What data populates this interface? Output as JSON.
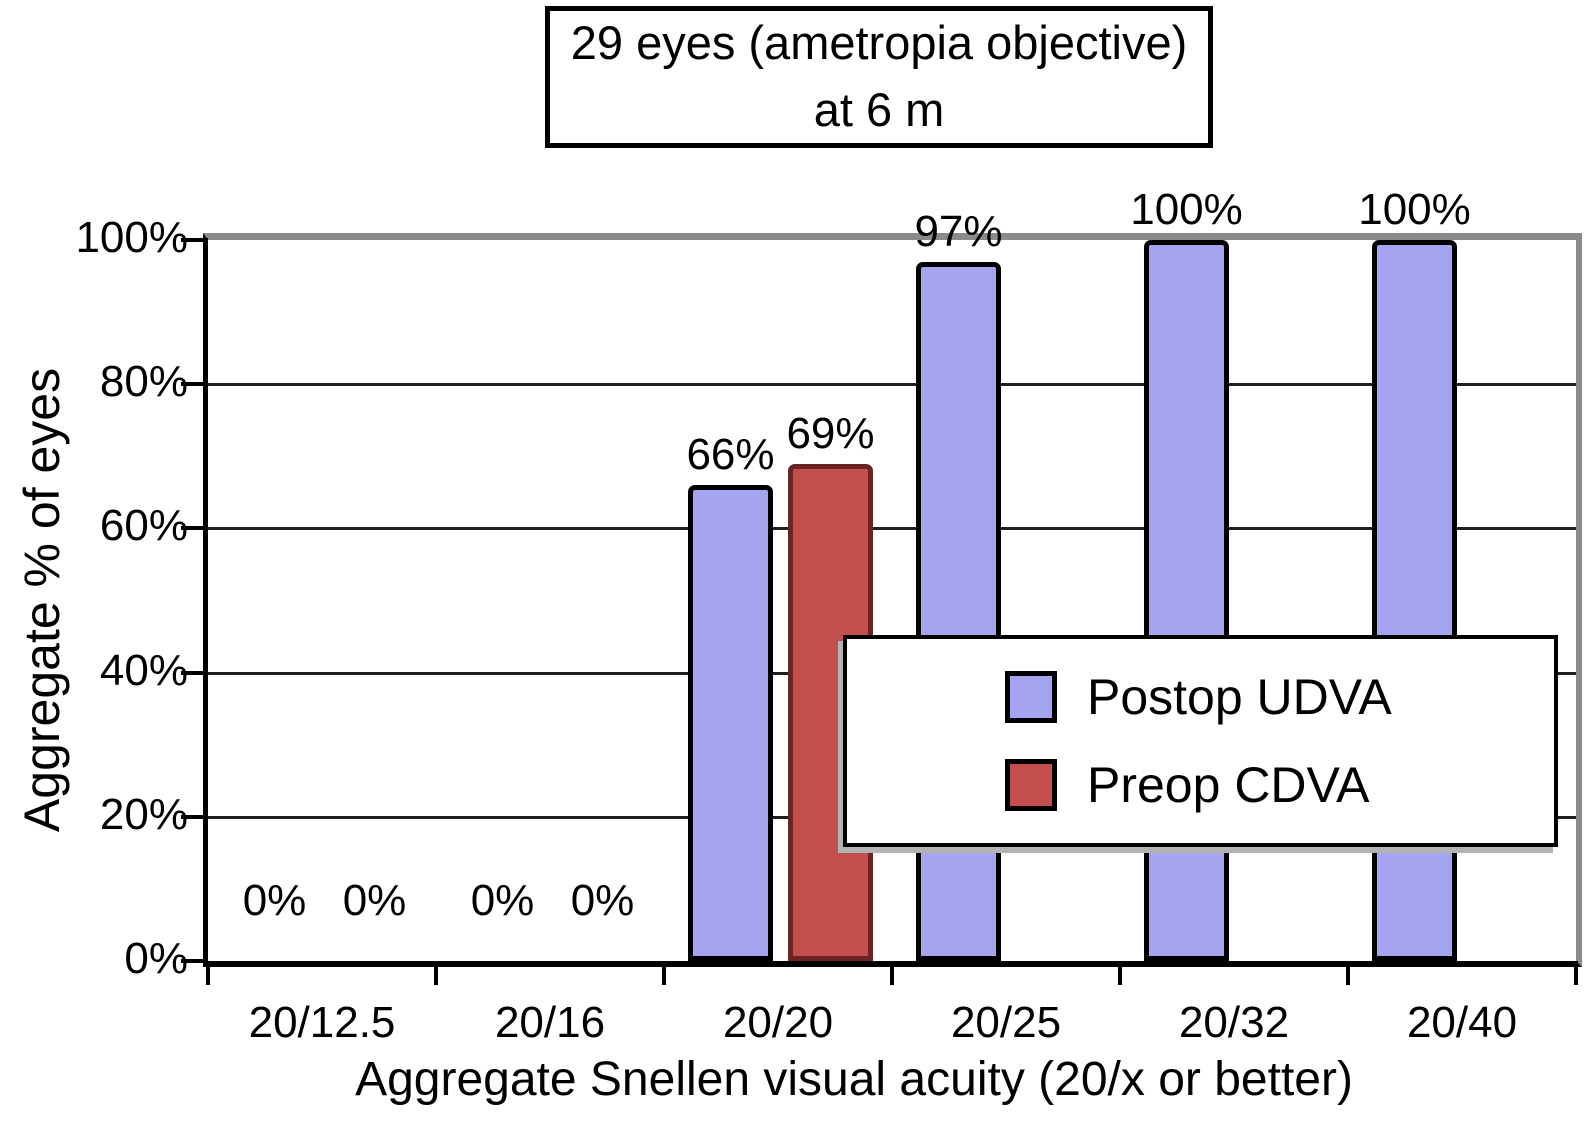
{
  "figure": {
    "title_line1": "29 eyes (ametropia objective)",
    "title_line2": "at 6 m"
  },
  "chart_data": {
    "type": "bar",
    "title": "29 eyes (ametropia objective) at 6 m",
    "xlabel": "Aggregate Snellen visual acuity (20/x or better)",
    "ylabel": "Aggregate % of eyes",
    "ylim": [
      0,
      100
    ],
    "ytick_step": 20,
    "yticks": [
      "0%",
      "20%",
      "40%",
      "60%",
      "80%",
      "100%"
    ],
    "grid": "horizontal",
    "categories": [
      "20/12.5",
      "20/16",
      "20/20",
      "20/25",
      "20/32",
      "20/40"
    ],
    "series": [
      {
        "name": "Postop UDVA",
        "color": "#a4a4f0",
        "bar_border_color": "#000000",
        "swatch_border_color": "#000000",
        "values": [
          0,
          0,
          66,
          97,
          100,
          100
        ],
        "data_labels": [
          "0%",
          "0%",
          "66%",
          "97%",
          "100%",
          "100%"
        ]
      },
      {
        "name": "Preop CDVA",
        "color": "#c24f4d",
        "bar_border_color": "#6b2423",
        "swatch_border_color": "#000000",
        "values": [
          0,
          0,
          69,
          null,
          null,
          null
        ],
        "data_labels": [
          "0%",
          "0%",
          "69%",
          null,
          null,
          null
        ]
      }
    ],
    "legend": {
      "position": "overlay-center-right",
      "entries": [
        "Postop UDVA",
        "Preop CDVA"
      ]
    }
  }
}
